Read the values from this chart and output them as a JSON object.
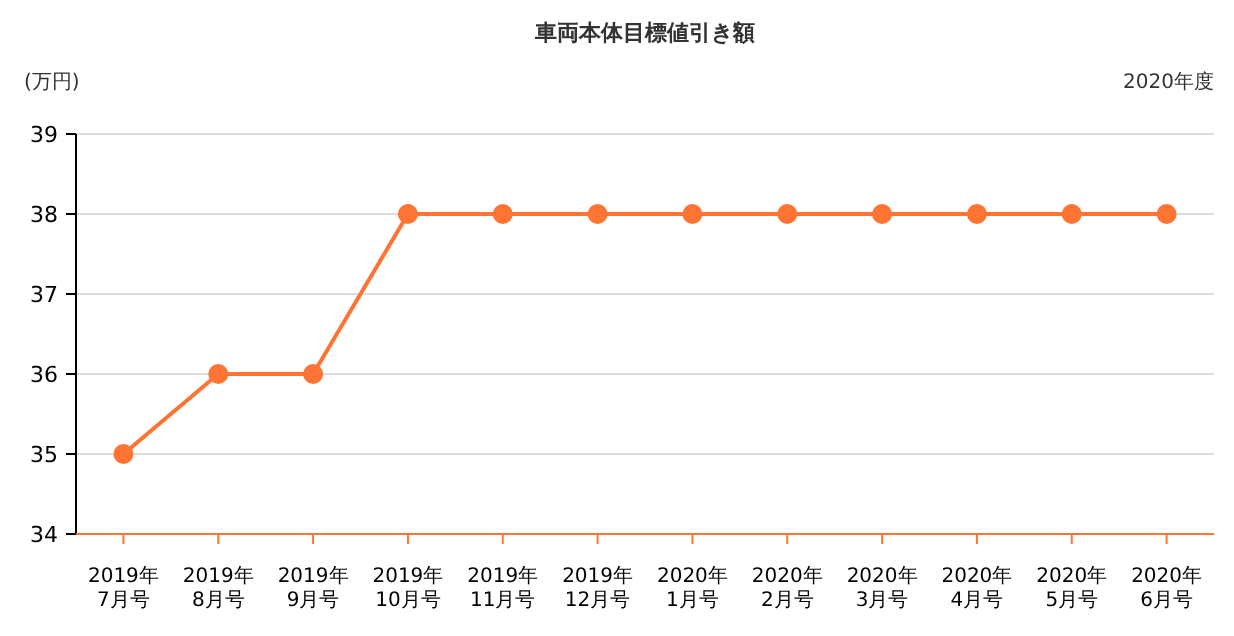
{
  "chart_data": {
    "type": "line",
    "title": "車両本体目標値引き額",
    "ylabel": "(万円)",
    "annotations": [
      "2020年度"
    ],
    "categories": [
      "2019年\n7月号",
      "2019年\n8月号",
      "2019年\n9月号",
      "2019年\n10月号",
      "2019年\n11月号",
      "2019年\n12月号",
      "2020年\n1月号",
      "2020年\n2月号",
      "2020年\n3月号",
      "2020年\n4月号",
      "2020年\n5月号",
      "2020年\n6月号"
    ],
    "series": [
      {
        "color": "#ff7433",
        "values": [
          35,
          36,
          36,
          38,
          38,
          38,
          38,
          38,
          38,
          38,
          38,
          38
        ]
      }
    ],
    "ylim": [
      34,
      39
    ],
    "yticks": [
      34,
      35,
      36,
      37,
      38,
      39
    ],
    "grid": "y",
    "marker": "circle",
    "line_style": "solid"
  }
}
